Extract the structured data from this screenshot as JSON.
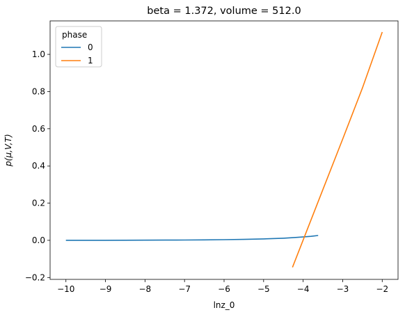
{
  "chart_data": {
    "type": "line",
    "title": "beta = 1.372, volume = 512.0",
    "xlabel": "lnz_0",
    "ylabel": "p(μ,V,T)",
    "xlim": [
      -10.4,
      -1.6
    ],
    "ylim": [
      -0.21,
      1.18
    ],
    "xticks": [
      -10,
      -9,
      -8,
      -7,
      -6,
      -5,
      -4,
      -3,
      -2
    ],
    "yticks": [
      -0.2,
      0.0,
      0.2,
      0.4,
      0.6,
      0.8,
      1.0
    ],
    "legend": {
      "title": "phase",
      "placement": "top-left"
    },
    "grid": false,
    "series": [
      {
        "name": "0",
        "color": "#1f77b4",
        "x": [
          -10,
          -9.5,
          -9,
          -8.5,
          -8,
          -7.5,
          -7,
          -6.5,
          -6,
          -5.5,
          -5,
          -4.5,
          -4.25,
          -4,
          -3.8,
          -3.62
        ],
        "y": [
          0.0,
          0.0,
          0.0,
          0.0005,
          0.0008,
          0.0012,
          0.0018,
          0.0026,
          0.0037,
          0.0052,
          0.0075,
          0.0115,
          0.0145,
          0.0182,
          0.0215,
          0.026
        ]
      },
      {
        "name": "1",
        "color": "#ff7f0e",
        "x": [
          -4.27,
          -3.5,
          -3.0,
          -2.5,
          -2.0
        ],
        "y": [
          -0.145,
          0.273,
          0.545,
          0.82,
          1.12
        ]
      }
    ]
  }
}
